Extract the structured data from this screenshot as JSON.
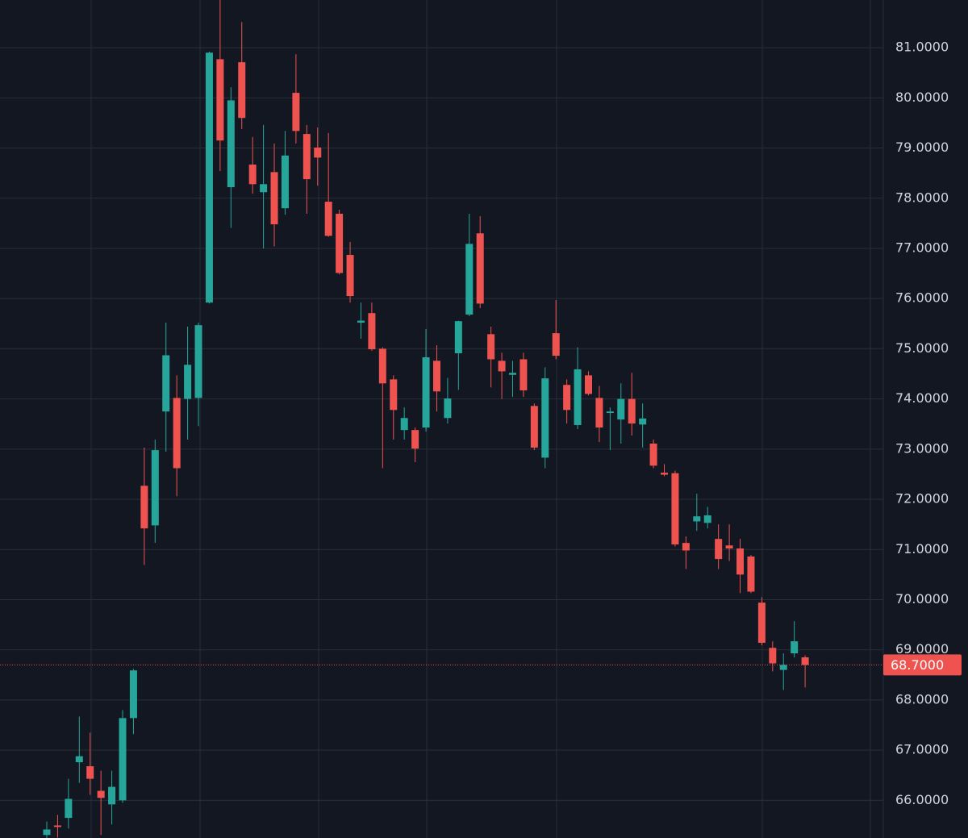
{
  "chart_data": {
    "type": "candlestick",
    "up_color": "#26a69a",
    "down_color": "#ef5350",
    "grid": true,
    "ylim": [
      65.25,
      81.95
    ],
    "yticks": [
      {
        "value": 66,
        "label": "66.0000"
      },
      {
        "value": 67,
        "label": "67.0000"
      },
      {
        "value": 68,
        "label": "68.0000"
      },
      {
        "value": 69,
        "label": "69.0000"
      },
      {
        "value": 70,
        "label": "70.0000"
      },
      {
        "value": 71,
        "label": "71.0000"
      },
      {
        "value": 72,
        "label": "72.0000"
      },
      {
        "value": 73,
        "label": "73.0000"
      },
      {
        "value": 74,
        "label": "74.0000"
      },
      {
        "value": 75,
        "label": "75.0000"
      },
      {
        "value": 76,
        "label": "76.0000"
      },
      {
        "value": 77,
        "label": "77.0000"
      },
      {
        "value": 78,
        "label": "78.0000"
      },
      {
        "value": 79,
        "label": "79.0000"
      },
      {
        "value": 80,
        "label": "80.0000"
      },
      {
        "value": 81,
        "label": "81.0000"
      }
    ],
    "last_price": {
      "value": 68.7,
      "label": "68.7000"
    },
    "open": [
      65.31,
      65.5,
      65.65,
      66.76,
      66.68,
      66.19,
      65.92,
      66.0,
      67.64,
      72.27,
      71.48,
      73.75,
      74.02,
      74.0,
      74.02,
      75.92,
      80.77,
      78.22,
      80.71,
      78.67,
      78.12,
      78.52,
      77.8,
      80.1,
      79.28,
      79.01,
      77.93,
      77.69,
      76.87,
      75.52,
      75.71,
      75.0,
      74.39,
      73.38,
      73.38,
      73.43,
      74.76,
      73.62,
      74.91,
      75.68,
      77.3,
      75.29,
      74.76,
      74.48,
      74.79,
      73.86,
      72.83,
      75.31,
      74.28,
      73.48,
      74.47,
      74.02,
      73.72,
      73.59,
      74.0,
      73.49,
      73.11,
      72.53,
      72.52,
      71.13,
      71.56,
      71.53,
      71.21,
      71.08,
      71.02,
      70.86,
      69.94,
      69.04,
      68.6,
      68.93,
      68.85
    ],
    "high": [
      65.58,
      65.71,
      66.43,
      67.67,
      67.35,
      66.59,
      66.59,
      67.8,
      68.62,
      73.03,
      73.19,
      75.52,
      74.47,
      75.44,
      75.52,
      80.92,
      81.95,
      80.21,
      81.51,
      79.22,
      79.46,
      79.09,
      79.34,
      80.87,
      79.46,
      79.41,
      79.3,
      77.77,
      77.13,
      75.92,
      75.92,
      75.03,
      74.47,
      73.83,
      73.43,
      75.39,
      75.07,
      74.42,
      75.56,
      77.69,
      77.64,
      75.44,
      74.92,
      74.76,
      74.92,
      73.91,
      74.63,
      75.97,
      74.39,
      75.03,
      74.55,
      74.26,
      73.83,
      74.31,
      74.52,
      73.91,
      73.19,
      72.7,
      72.57,
      71.26,
      72.11,
      71.85,
      71.5,
      71.5,
      71.21,
      70.89,
      70.05,
      69.17,
      68.93,
      69.57,
      68.89
    ],
    "low": [
      65.25,
      65.26,
      65.44,
      66.35,
      66.11,
      65.31,
      65.52,
      65.95,
      67.32,
      70.69,
      71.13,
      72.95,
      72.06,
      73.19,
      73.46,
      75.9,
      78.54,
      77.41,
      79.38,
      78.09,
      77.0,
      77.04,
      77.67,
      79.09,
      77.69,
      78.25,
      77.23,
      76.48,
      75.92,
      75.2,
      74.96,
      72.62,
      73.19,
      73.19,
      72.74,
      73.35,
      73.75,
      73.51,
      74.18,
      75.65,
      75.81,
      74.23,
      74.0,
      74.04,
      74.04,
      72.98,
      72.62,
      74.79,
      73.51,
      73.4,
      74.07,
      73.14,
      72.98,
      73.11,
      73.27,
      73.03,
      72.62,
      72.46,
      71.06,
      70.61,
      71.37,
      71.42,
      70.61,
      70.77,
      70.13,
      70.13,
      69.09,
      68.57,
      68.2,
      68.85,
      68.25
    ],
    "close": [
      65.42,
      65.47,
      66.03,
      66.88,
      66.43,
      66.05,
      66.27,
      67.64,
      68.59,
      71.42,
      72.98,
      74.87,
      72.62,
      74.68,
      75.47,
      80.9,
      79.15,
      79.95,
      79.6,
      78.28,
      78.28,
      77.48,
      78.85,
      79.34,
      78.38,
      78.81,
      77.25,
      76.51,
      76.05,
      75.56,
      74.99,
      74.31,
      73.78,
      73.62,
      73.01,
      74.83,
      74.15,
      74.01,
      75.55,
      77.09,
      75.9,
      74.79,
      74.55,
      74.52,
      74.17,
      73.03,
      74.41,
      74.86,
      73.78,
      74.59,
      74.1,
      73.43,
      73.75,
      74.0,
      73.51,
      73.61,
      72.67,
      72.49,
      71.1,
      70.98,
      71.66,
      71.68,
      70.81,
      71.02,
      70.5,
      70.16,
      69.14,
      68.73,
      68.7,
      69.17,
      68.7
    ]
  }
}
